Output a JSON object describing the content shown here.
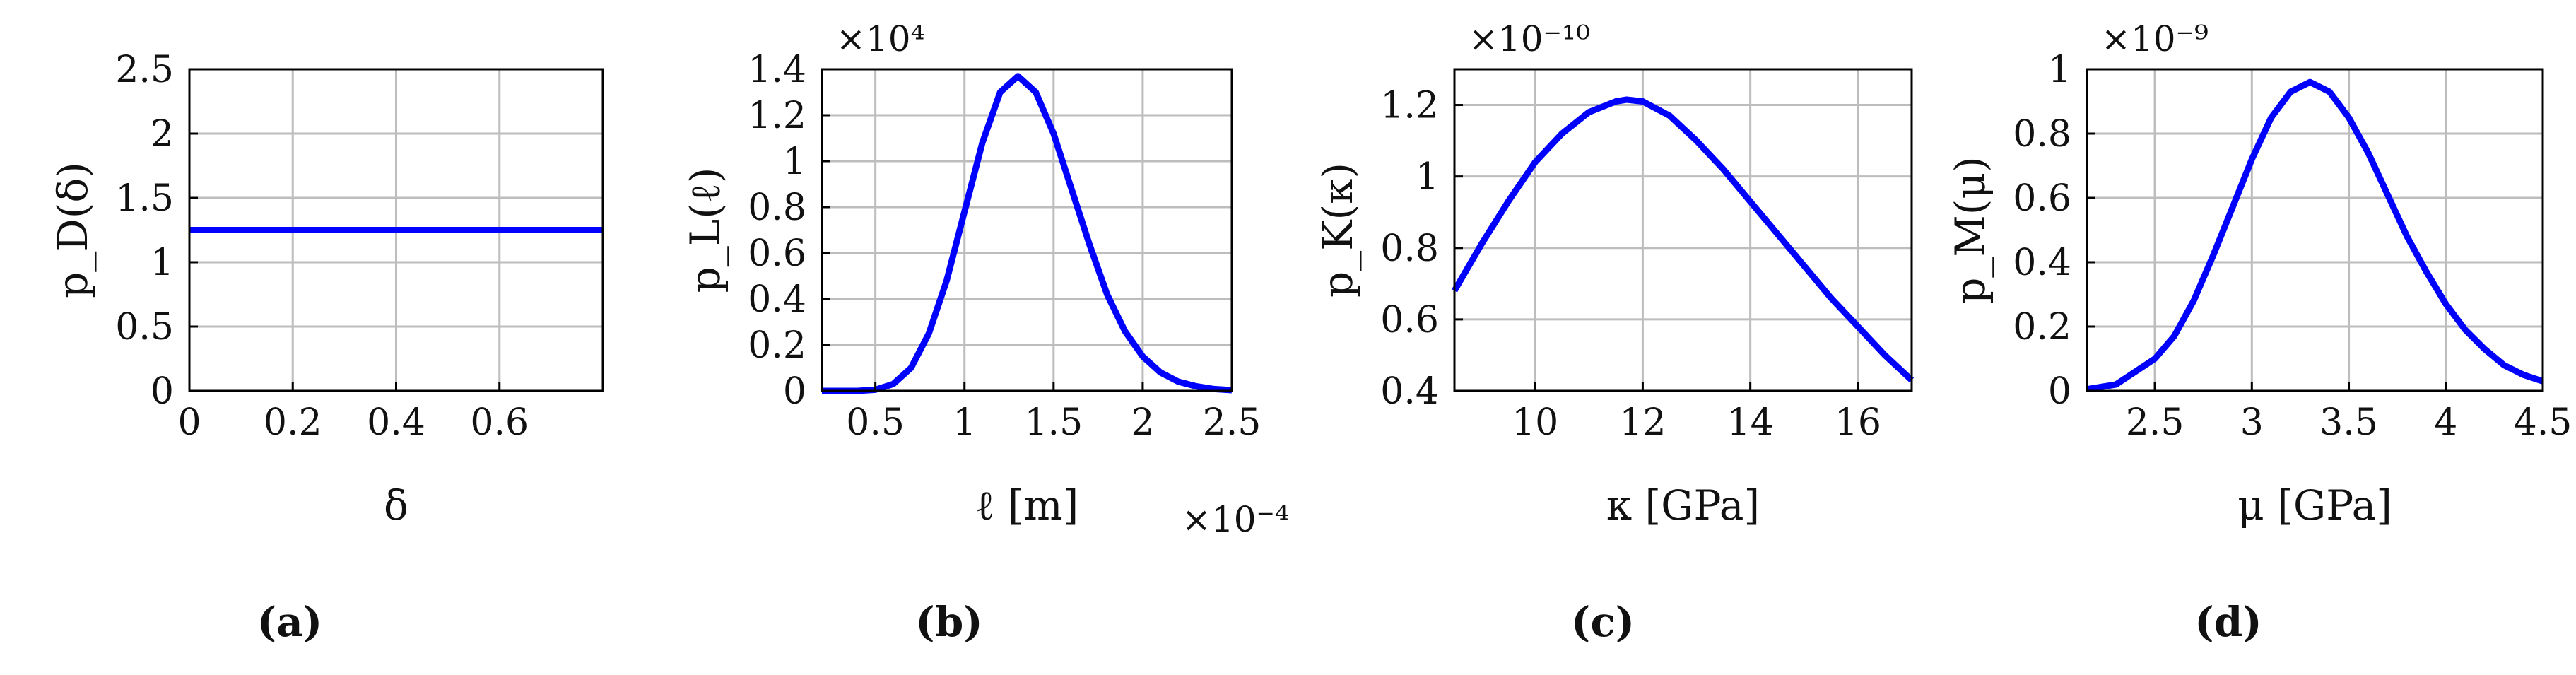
{
  "colors": {
    "curve": "#0000ff",
    "grid": "#bdbdbd",
    "axis": "#000000"
  },
  "chart_data": [
    {
      "type": "line",
      "caption": "(a)",
      "ylabel": "p_D(δ)",
      "xlabel": "δ",
      "x_multiplier": "",
      "y_multiplier": "",
      "xlim": [
        0,
        0.8
      ],
      "ylim": [
        0,
        2.5
      ],
      "x_ticks": [
        0,
        0.2,
        0.4,
        0.6
      ],
      "x_tick_labels": [
        "0",
        "0.2",
        "0.4",
        "0.6"
      ],
      "y_ticks": [
        0,
        0.5,
        1,
        1.5,
        2,
        2.5
      ],
      "y_tick_labels": [
        "0",
        "0.5",
        "1",
        "1.5",
        "2",
        "2.5"
      ],
      "grid": true,
      "series": [
        {
          "x": [
            0,
            0.8
          ],
          "y": [
            1.25,
            1.25
          ]
        }
      ]
    },
    {
      "type": "line",
      "caption": "(b)",
      "ylabel": "p_L(ℓ)",
      "xlabel": "ℓ [m]",
      "x_multiplier": "×10⁻⁴",
      "y_multiplier": "×10⁴",
      "xlim": [
        0.2,
        2.5
      ],
      "ylim": [
        0,
        1.4
      ],
      "x_ticks": [
        0.5,
        1,
        1.5,
        2,
        2.5
      ],
      "x_tick_labels": [
        "0.5",
        "1",
        "1.5",
        "2",
        "2.5"
      ],
      "y_ticks": [
        0,
        0.2,
        0.4,
        0.6,
        0.8,
        1,
        1.2,
        1.4
      ],
      "y_tick_labels": [
        "0",
        "0.2",
        "0.4",
        "0.6",
        "0.8",
        "1",
        "1.2",
        "1.4"
      ],
      "grid": true,
      "series": [
        {
          "x": [
            0.2,
            0.4,
            0.5,
            0.6,
            0.7,
            0.8,
            0.9,
            1.0,
            1.1,
            1.2,
            1.3,
            1.4,
            1.5,
            1.6,
            1.7,
            1.8,
            1.9,
            2.0,
            2.1,
            2.2,
            2.3,
            2.4,
            2.5
          ],
          "y": [
            0,
            0,
            0.005,
            0.03,
            0.1,
            0.25,
            0.48,
            0.78,
            1.08,
            1.3,
            1.37,
            1.3,
            1.12,
            0.88,
            0.64,
            0.42,
            0.26,
            0.15,
            0.08,
            0.04,
            0.02,
            0.008,
            0.003
          ]
        }
      ]
    },
    {
      "type": "line",
      "caption": "(c)",
      "ylabel": "p_K(κ)",
      "xlabel": "κ [GPa]",
      "x_multiplier": "",
      "y_multiplier": "×10⁻¹⁰",
      "xlim": [
        8.5,
        17
      ],
      "ylim": [
        0.4,
        1.3
      ],
      "x_ticks": [
        10,
        12,
        14,
        16
      ],
      "x_tick_labels": [
        "10",
        "12",
        "14",
        "16"
      ],
      "y_ticks": [
        0.4,
        0.6,
        0.8,
        1,
        1.2
      ],
      "y_tick_labels": [
        "0.4",
        "0.6",
        "0.8",
        "1",
        "1.2"
      ],
      "grid": true,
      "series": [
        {
          "x": [
            8.5,
            9,
            9.5,
            10,
            10.5,
            11,
            11.5,
            11.7,
            12,
            12.5,
            13,
            13.5,
            14,
            14.5,
            15,
            15.5,
            16,
            16.5,
            17
          ],
          "y": [
            0.68,
            0.81,
            0.93,
            1.04,
            1.12,
            1.18,
            1.21,
            1.215,
            1.21,
            1.17,
            1.1,
            1.02,
            0.93,
            0.84,
            0.75,
            0.66,
            0.58,
            0.5,
            0.43
          ]
        }
      ]
    },
    {
      "type": "line",
      "caption": "(d)",
      "ylabel": "p_M(μ)",
      "xlabel": "μ [GPa]",
      "x_multiplier": "",
      "y_multiplier": "×10⁻⁹",
      "xlim": [
        2.15,
        4.5
      ],
      "ylim": [
        0,
        1
      ],
      "x_ticks": [
        2.5,
        3,
        3.5,
        4,
        4.5
      ],
      "x_tick_labels": [
        "2.5",
        "3",
        "3.5",
        "4",
        "4.5"
      ],
      "y_ticks": [
        0,
        0.2,
        0.4,
        0.6,
        0.8,
        1
      ],
      "y_tick_labels": [
        "0",
        "0.2",
        "0.4",
        "0.6",
        "0.8",
        "1"
      ],
      "grid": true,
      "series": [
        {
          "x": [
            2.15,
            2.3,
            2.5,
            2.6,
            2.7,
            2.8,
            2.9,
            3.0,
            3.1,
            3.2,
            3.3,
            3.4,
            3.5,
            3.6,
            3.7,
            3.8,
            3.9,
            4.0,
            4.1,
            4.2,
            4.3,
            4.4,
            4.5
          ],
          "y": [
            0.005,
            0.02,
            0.1,
            0.17,
            0.28,
            0.42,
            0.57,
            0.72,
            0.85,
            0.93,
            0.96,
            0.93,
            0.85,
            0.74,
            0.61,
            0.48,
            0.37,
            0.27,
            0.19,
            0.13,
            0.08,
            0.05,
            0.03
          ]
        }
      ]
    }
  ]
}
